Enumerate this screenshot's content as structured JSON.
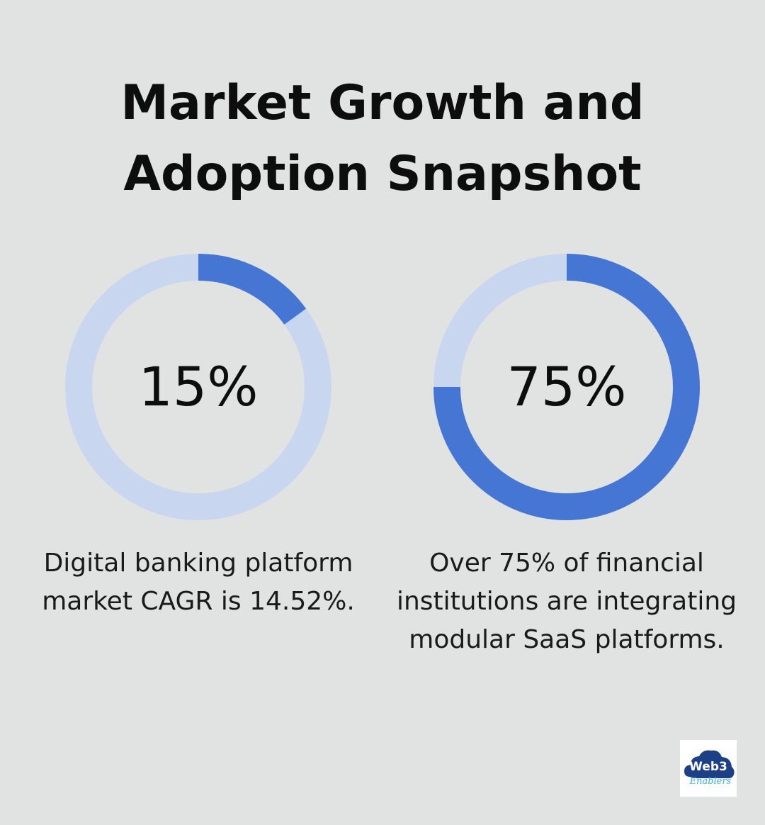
{
  "title": {
    "line1": "Market Growth and",
    "line2": "Adoption Snapshot"
  },
  "colors": {
    "background": "#e1e3e2",
    "ring_track": "#c8d6f0",
    "ring_fill": "#4676d3",
    "text": "#0d0d0d"
  },
  "chart_data": [
    {
      "type": "pie",
      "value_percent": 15,
      "value_label": "15%",
      "description_lines": [
        "Digital banking platform",
        "market CAGR is 14.52%."
      ]
    },
    {
      "type": "pie",
      "value_percent": 75,
      "value_label": "75%",
      "description_lines": [
        "Over 75% of financial",
        "institutions are integrating",
        "modular SaaS platforms."
      ]
    }
  ],
  "logo": {
    "text_main": "Web3",
    "text_sub": "Enablers"
  }
}
